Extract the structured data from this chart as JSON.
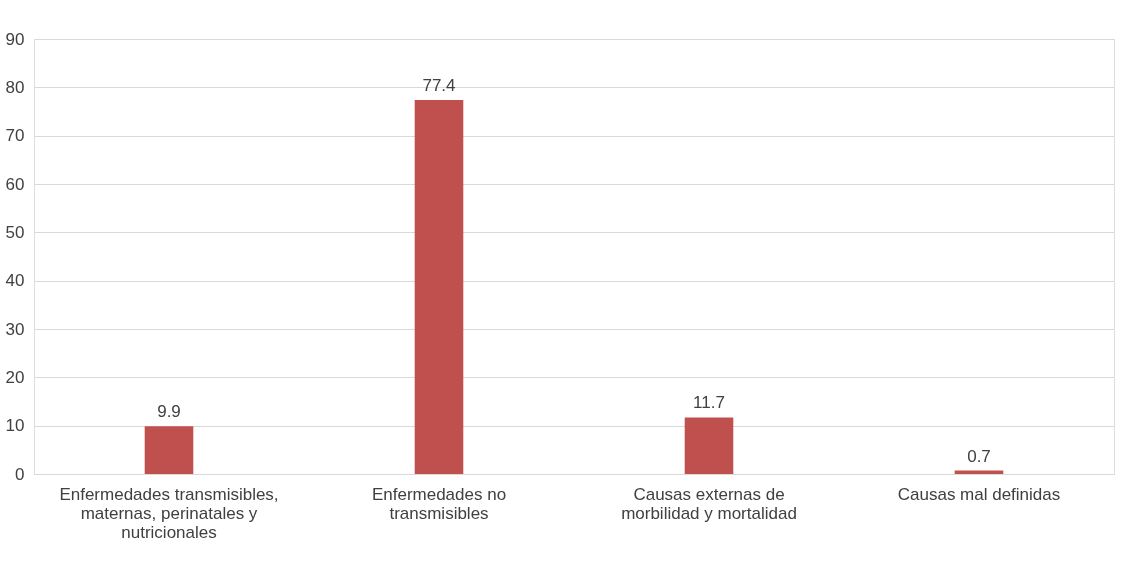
{
  "chart_data": {
    "type": "bar",
    "categories": [
      "Enfermedades transmisibles, maternas, perinatales y nutricionales",
      "Enfermedades no transmisibles",
      "Causas externas de morbilidad y mortalidad",
      "Causas mal definidas"
    ],
    "values": [
      9.9,
      77.4,
      11.7,
      0.7
    ],
    "color": "#c0504d",
    "ylim": [
      0,
      90
    ],
    "yticks": [
      0,
      10,
      20,
      30,
      40,
      50,
      60,
      70,
      80,
      90
    ],
    "grid": "y",
    "data_labels": true
  }
}
